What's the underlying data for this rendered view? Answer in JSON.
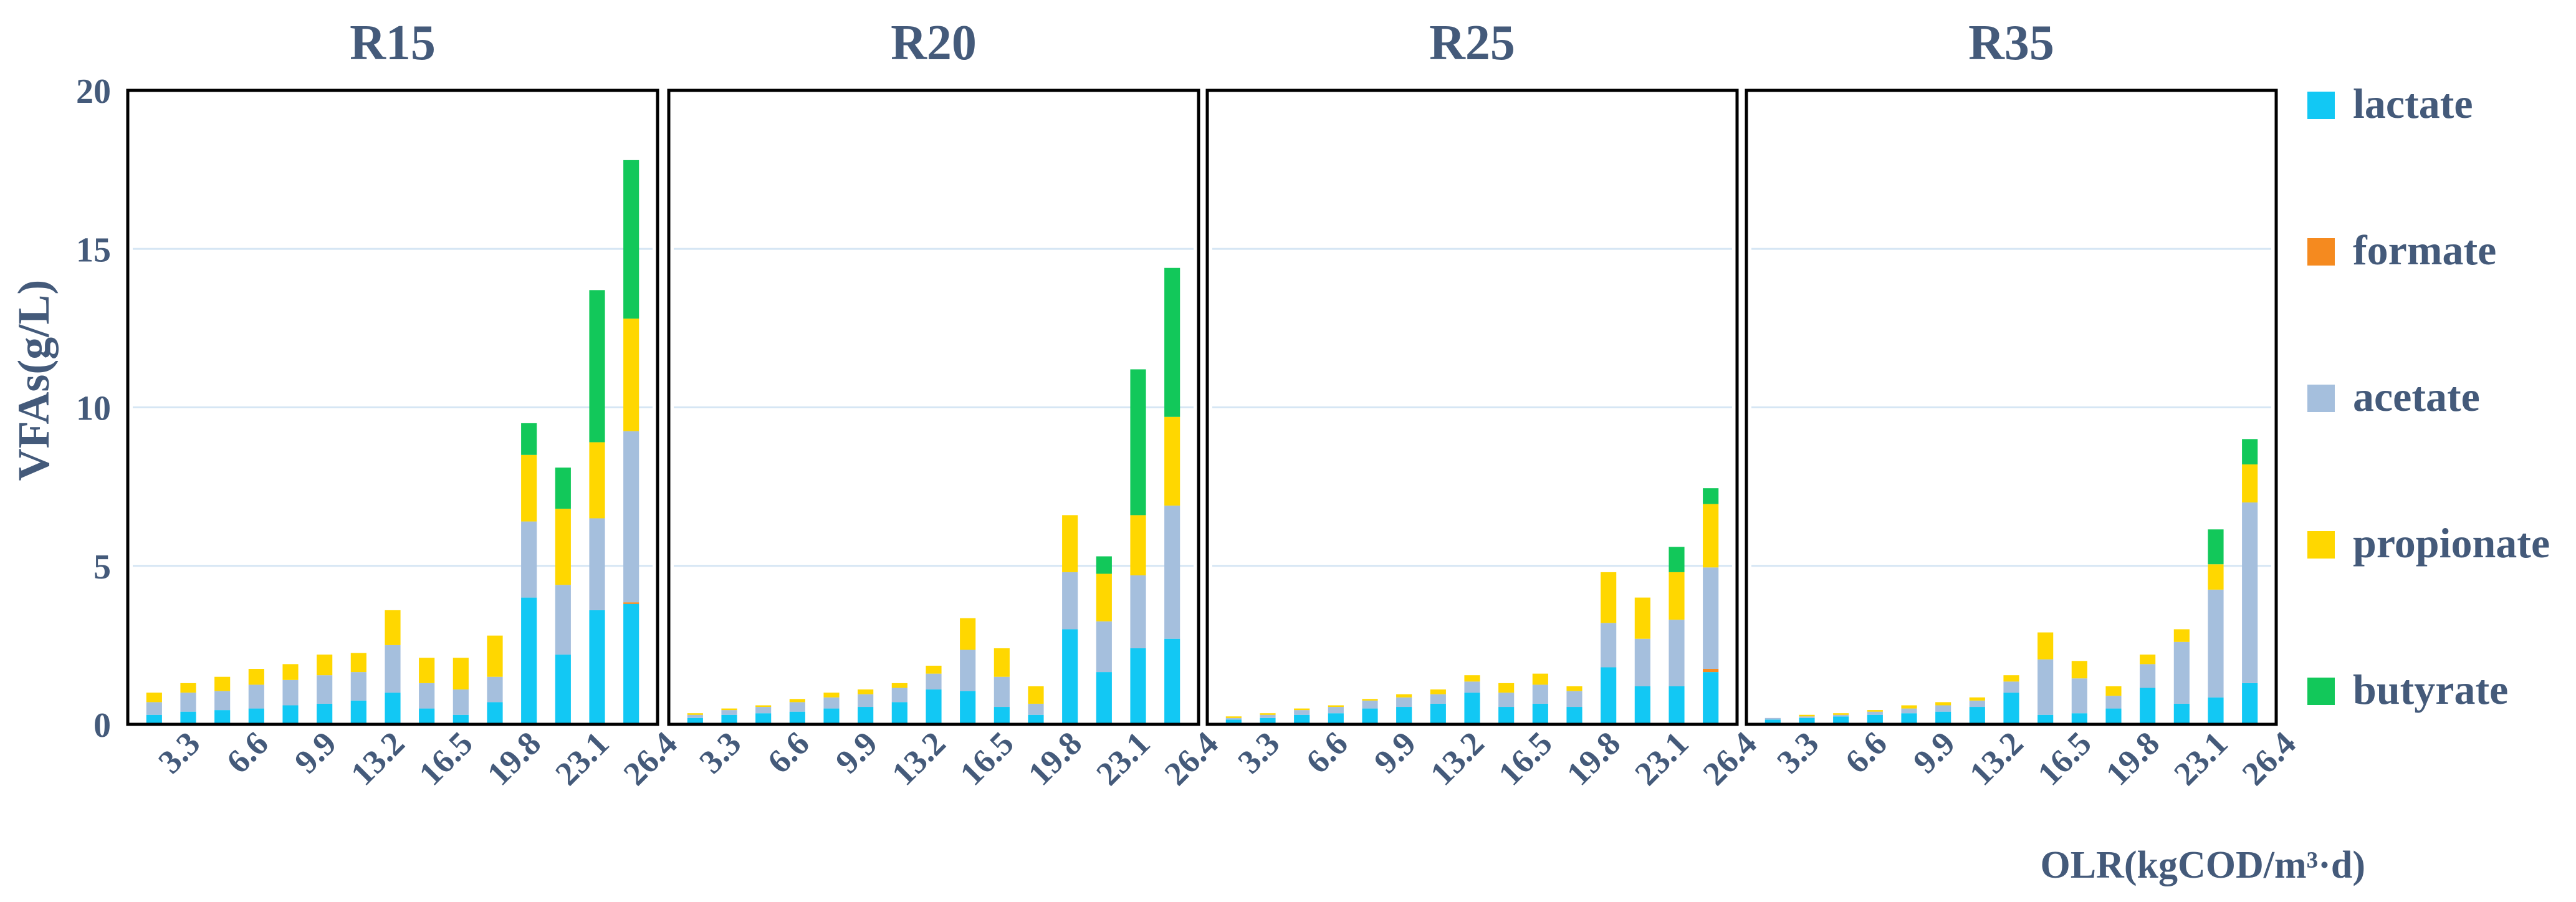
{
  "chart_data": {
    "type": "bar",
    "stacked": true,
    "ylabel": "VFAs(g/L)",
    "xlabel": "OLR(kgCOD/m³·d)",
    "ylim": [
      0,
      20
    ],
    "yticks": [
      0,
      5,
      10,
      15,
      20
    ],
    "grid": true,
    "legend_position": "right",
    "x_tick_labels": [
      "3.3",
      "6.6",
      "9.9",
      "13.2",
      "16.5",
      "19.8",
      "23.1",
      "26.4"
    ],
    "series_names": [
      "lactate",
      "formate",
      "acetate",
      "propionate",
      "butyrate"
    ],
    "colors": {
      "lactate": "#12c8f4",
      "formate": "#f58a1f",
      "acetate": "#a5bfdd",
      "propionate": "#ffd700",
      "butyrate": "#12c85a"
    },
    "panels": [
      {
        "title": "R15",
        "stacks": [
          [
            0.3,
            0,
            0.4,
            0.3,
            0
          ],
          [
            0.4,
            0,
            0.6,
            0.3,
            0
          ],
          [
            0.45,
            0,
            0.6,
            0.45,
            0
          ],
          [
            0.5,
            0,
            0.75,
            0.5,
            0
          ],
          [
            0.6,
            0,
            0.8,
            0.5,
            0
          ],
          [
            0.65,
            0,
            0.9,
            0.65,
            0
          ],
          [
            0.75,
            0,
            0.9,
            0.6,
            0
          ],
          [
            1.0,
            0,
            1.5,
            1.1,
            0
          ],
          [
            0.5,
            0,
            0.8,
            0.8,
            0
          ],
          [
            0.3,
            0,
            0.8,
            1.0,
            0
          ],
          [
            0.7,
            0,
            0.8,
            1.3,
            0
          ],
          [
            4.0,
            0,
            2.4,
            2.1,
            1.0
          ],
          [
            2.2,
            0,
            2.2,
            2.4,
            1.3
          ],
          [
            3.6,
            0,
            2.9,
            2.4,
            4.8
          ],
          [
            3.8,
            0.05,
            5.4,
            3.55,
            5.0
          ]
        ]
      },
      {
        "title": "R20",
        "stacks": [
          [
            0.2,
            0,
            0.1,
            0.05,
            0
          ],
          [
            0.3,
            0,
            0.15,
            0.05,
            0
          ],
          [
            0.35,
            0,
            0.2,
            0.05,
            0
          ],
          [
            0.4,
            0,
            0.3,
            0.1,
            0
          ],
          [
            0.5,
            0,
            0.35,
            0.15,
            0
          ],
          [
            0.55,
            0,
            0.4,
            0.15,
            0
          ],
          [
            0.7,
            0,
            0.45,
            0.15,
            0
          ],
          [
            1.1,
            0,
            0.5,
            0.25,
            0
          ],
          [
            1.05,
            0,
            1.3,
            1.0,
            0
          ],
          [
            0.55,
            0,
            0.95,
            0.9,
            0
          ],
          [
            0.3,
            0,
            0.35,
            0.55,
            0
          ],
          [
            3.0,
            0,
            1.8,
            1.8,
            0
          ],
          [
            1.65,
            0,
            1.6,
            1.5,
            0.55
          ],
          [
            2.4,
            0,
            2.3,
            1.9,
            4.6
          ],
          [
            2.7,
            0,
            4.2,
            2.8,
            4.7
          ]
        ]
      },
      {
        "title": "R25",
        "stacks": [
          [
            0.15,
            0,
            0.05,
            0.05,
            0
          ],
          [
            0.2,
            0,
            0.1,
            0.05,
            0
          ],
          [
            0.3,
            0,
            0.15,
            0.05,
            0
          ],
          [
            0.35,
            0,
            0.2,
            0.05,
            0
          ],
          [
            0.5,
            0,
            0.25,
            0.05,
            0
          ],
          [
            0.55,
            0,
            0.3,
            0.1,
            0
          ],
          [
            0.65,
            0,
            0.3,
            0.15,
            0
          ],
          [
            1.0,
            0,
            0.35,
            0.2,
            0
          ],
          [
            0.55,
            0,
            0.45,
            0.3,
            0
          ],
          [
            0.65,
            0,
            0.6,
            0.35,
            0
          ],
          [
            0.55,
            0,
            0.5,
            0.15,
            0
          ],
          [
            1.8,
            0,
            1.4,
            1.6,
            0
          ],
          [
            1.2,
            0,
            1.5,
            1.3,
            0
          ],
          [
            1.2,
            0,
            2.1,
            1.5,
            0.8
          ],
          [
            1.65,
            0.1,
            3.2,
            2.0,
            0.5
          ]
        ]
      },
      {
        "title": "R35",
        "stacks": [
          [
            0.15,
            0,
            0.05,
            0.0,
            0
          ],
          [
            0.2,
            0,
            0.05,
            0.05,
            0
          ],
          [
            0.25,
            0,
            0.05,
            0.05,
            0
          ],
          [
            0.3,
            0,
            0.1,
            0.05,
            0
          ],
          [
            0.35,
            0,
            0.15,
            0.1,
            0
          ],
          [
            0.4,
            0,
            0.2,
            0.1,
            0
          ],
          [
            0.55,
            0,
            0.2,
            0.1,
            0
          ],
          [
            1.0,
            0,
            0.35,
            0.2,
            0
          ],
          [
            0.3,
            0,
            1.75,
            0.85,
            0
          ],
          [
            0.35,
            0,
            1.1,
            0.55,
            0
          ],
          [
            0.5,
            0,
            0.4,
            0.3,
            0
          ],
          [
            1.15,
            0,
            0.75,
            0.3,
            0
          ],
          [
            0.65,
            0,
            1.95,
            0.4,
            0
          ],
          [
            0.85,
            0,
            3.4,
            0.8,
            1.1
          ],
          [
            1.3,
            0,
            5.7,
            1.2,
            0.8
          ]
        ]
      }
    ]
  }
}
